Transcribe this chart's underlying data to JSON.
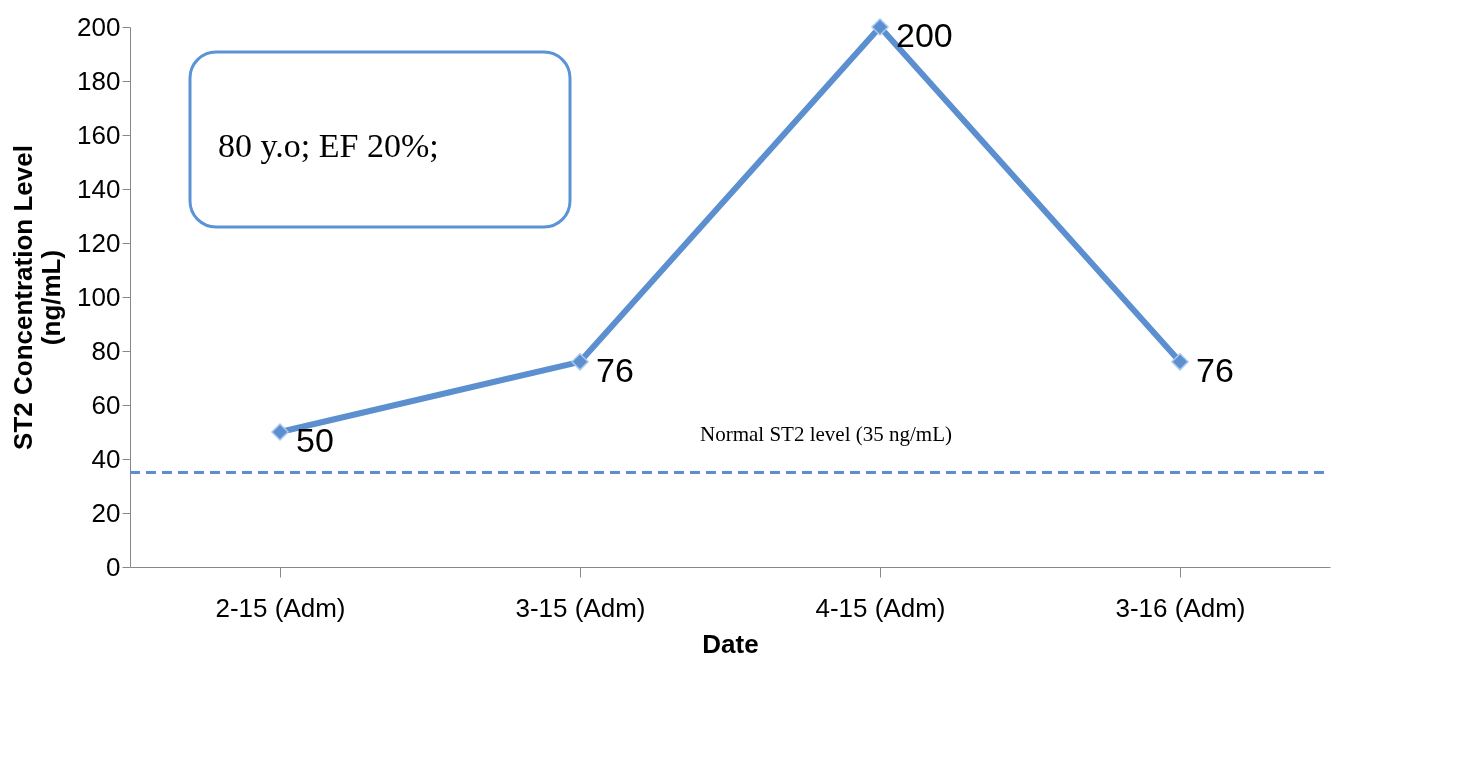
{
  "chart_data": {
    "type": "line",
    "categories": [
      "2-15 (Adm)",
      "3-15 (Adm)",
      "4-15 (Adm)",
      "3-16 (Adm)"
    ],
    "series": [
      {
        "color": "#5b8fd0",
        "values": [
          50,
          76,
          200,
          76
        ]
      }
    ],
    "xlabel": "Date",
    "ylabel": "ST2 Concentration Level\n(ng/mL)",
    "ylim": [
      0,
      200
    ],
    "yticks": [
      0,
      20,
      40,
      60,
      80,
      100,
      120,
      140,
      160,
      180,
      200
    ],
    "grid": false,
    "marker": "diamond",
    "line_style": "solid",
    "data_labels": true,
    "ref_lines": [
      {
        "axis": "y",
        "value": 35,
        "label": "Normal ST2 level (35 ng/mL)",
        "color": "#5b8fd0",
        "line_style": "dashed"
      }
    ],
    "annotations": [
      "80 y.o; EF 20%;"
    ]
  }
}
